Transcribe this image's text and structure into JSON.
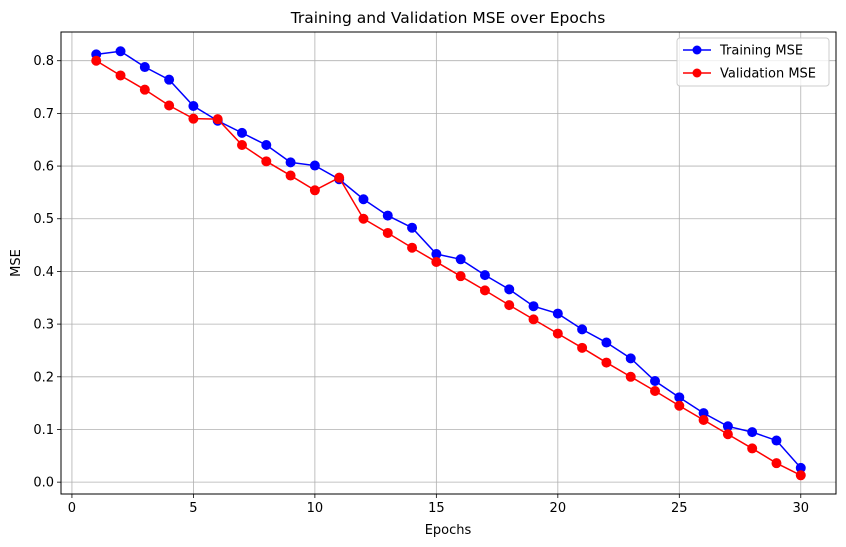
{
  "chart_data": {
    "type": "line",
    "title": "Training and Validation MSE over Epochs",
    "xlabel": "Epochs",
    "ylabel": "MSE",
    "xlim": [
      -0.45,
      31.45
    ],
    "ylim": [
      -0.0225,
      0.8545
    ],
    "xticks": [
      0,
      5,
      10,
      15,
      20,
      25,
      30
    ],
    "yticks": [
      0.0,
      0.1,
      0.2,
      0.3,
      0.4,
      0.5,
      0.6,
      0.7,
      0.8
    ],
    "grid": true,
    "legend_position": "top-right",
    "x": [
      1,
      2,
      3,
      4,
      5,
      6,
      7,
      8,
      9,
      10,
      11,
      12,
      13,
      14,
      15,
      16,
      17,
      18,
      19,
      20,
      21,
      22,
      23,
      24,
      25,
      26,
      27,
      28,
      29,
      30
    ],
    "series": [
      {
        "name": "Training MSE",
        "color": "#0000ff",
        "marker": "circle",
        "values": [
          0.812,
          0.818,
          0.788,
          0.764,
          0.714,
          0.686,
          0.663,
          0.64,
          0.607,
          0.601,
          0.575,
          0.537,
          0.506,
          0.483,
          0.433,
          0.423,
          0.393,
          0.366,
          0.334,
          0.32,
          0.29,
          0.265,
          0.235,
          0.192,
          0.161,
          0.131,
          0.106,
          0.095,
          0.079,
          0.027
        ]
      },
      {
        "name": "Validation MSE",
        "color": "#ff0000",
        "marker": "circle",
        "values": [
          0.8,
          0.772,
          0.745,
          0.715,
          0.69,
          0.689,
          0.64,
          0.609,
          0.582,
          0.554,
          0.578,
          0.5,
          0.473,
          0.445,
          0.418,
          0.391,
          0.364,
          0.336,
          0.309,
          0.282,
          0.255,
          0.227,
          0.2,
          0.173,
          0.145,
          0.118,
          0.091,
          0.064,
          0.036,
          0.013
        ]
      }
    ]
  }
}
